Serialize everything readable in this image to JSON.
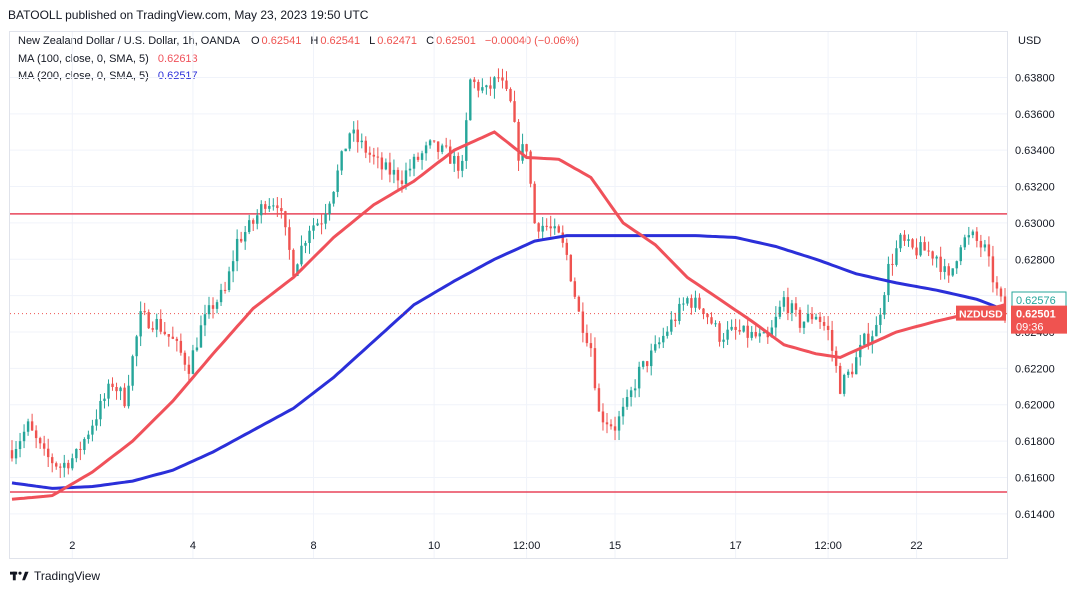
{
  "header": {
    "published": "BATOOLL published on TradingView.com, May 23, 2023 19:50 UTC"
  },
  "legend": {
    "symbol": "New Zealand Dollar / U.S. Dollar, 1h, OANDA",
    "o_label": "O",
    "o_value": "0.62541",
    "h_label": "H",
    "h_value": "0.62541",
    "l_label": "L",
    "l_value": "0.62471",
    "c_label": "C",
    "c_value": "0.62501",
    "change": "−0.00040 (−0.06%)",
    "ma100_label": "MA (100, close, 0, SMA, 5)",
    "ma100_value": "0.62613",
    "ma200_label": "MA (200, close, 0, SMA, 5)",
    "ma200_value": "0.62517"
  },
  "footer": {
    "brand": "TradingView"
  },
  "colors": {
    "up": "#26a69a",
    "down": "#ef5350",
    "ma100": "#f0515a",
    "ma200": "#2b2fd9",
    "hline": "#e8455a",
    "grid": "#f0f3fa",
    "axis_text": "#131722"
  },
  "chart_data": {
    "type": "candlestick",
    "title": "New Zealand Dollar / U.S. Dollar, 1h, OANDA",
    "currency_label": "USD",
    "ylim": [
      0.613,
      0.6405
    ],
    "y_ticks": [
      "0.61400",
      "0.61600",
      "0.61800",
      "0.62000",
      "0.62200",
      "0.62400",
      "0.62600",
      "0.62800",
      "0.63000",
      "0.63200",
      "0.63400",
      "0.63600",
      "0.63800"
    ],
    "x_ticks": [
      {
        "label": "2",
        "i": 15
      },
      {
        "label": "4",
        "i": 45
      },
      {
        "label": "8",
        "i": 75
      },
      {
        "label": "10",
        "i": 105
      },
      {
        "label": "12:00",
        "i": 128
      },
      {
        "label": "15",
        "i": 150
      },
      {
        "label": "17",
        "i": 180
      },
      {
        "label": "12:00",
        "i": 203
      },
      {
        "label": "22",
        "i": 225
      }
    ],
    "n_bars": 248,
    "horizontal_lines": [
      0.6305,
      0.6152
    ],
    "price_labels": [
      {
        "text": "0.62576",
        "value": 0.62576,
        "kind": "ma"
      },
      {
        "text": "0.62501",
        "value": 0.62501,
        "kind": "last"
      }
    ],
    "last_symbol": "NZDUSD",
    "countdown": "09:36",
    "price_anchors": [
      [
        0,
        0.6175
      ],
      [
        4,
        0.6188
      ],
      [
        8,
        0.6172
      ],
      [
        12,
        0.6166
      ],
      [
        16,
        0.6172
      ],
      [
        20,
        0.619
      ],
      [
        25,
        0.6212
      ],
      [
        28,
        0.6203
      ],
      [
        32,
        0.6248
      ],
      [
        36,
        0.6245
      ],
      [
        40,
        0.6235
      ],
      [
        44,
        0.6221
      ],
      [
        47,
        0.6242
      ],
      [
        50,
        0.6255
      ],
      [
        53,
        0.6262
      ],
      [
        56,
        0.629
      ],
      [
        60,
        0.63
      ],
      [
        63,
        0.6312
      ],
      [
        66,
        0.6312
      ],
      [
        70,
        0.6275
      ],
      [
        74,
        0.6298
      ],
      [
        77,
        0.6302
      ],
      [
        80,
        0.632
      ],
      [
        84,
        0.635
      ],
      [
        88,
        0.634
      ],
      [
        92,
        0.633
      ],
      [
        97,
        0.6325
      ],
      [
        100,
        0.6333
      ],
      [
        104,
        0.6342
      ],
      [
        108,
        0.6338
      ],
      [
        112,
        0.633
      ],
      [
        114,
        0.6378
      ],
      [
        118,
        0.6372
      ],
      [
        121,
        0.638
      ],
      [
        124,
        0.6365
      ],
      [
        126,
        0.6338
      ],
      [
        128,
        0.6342
      ],
      [
        130,
        0.63
      ],
      [
        133,
        0.6298
      ],
      [
        136,
        0.6292
      ],
      [
        138,
        0.6282
      ],
      [
        141,
        0.625
      ],
      [
        144,
        0.6232
      ],
      [
        146,
        0.6195
      ],
      [
        150,
        0.6188
      ],
      [
        153,
        0.62
      ],
      [
        156,
        0.6218
      ],
      [
        160,
        0.623
      ],
      [
        164,
        0.6245
      ],
      [
        168,
        0.6258
      ],
      [
        172,
        0.6253
      ],
      [
        176,
        0.6238
      ],
      [
        180,
        0.624
      ],
      [
        184,
        0.6238
      ],
      [
        188,
        0.6235
      ],
      [
        192,
        0.6258
      ],
      [
        196,
        0.6245
      ],
      [
        200,
        0.625
      ],
      [
        203,
        0.624
      ],
      [
        206,
        0.621
      ],
      [
        209,
        0.622
      ],
      [
        212,
        0.6235
      ],
      [
        215,
        0.6242
      ],
      [
        218,
        0.6275
      ],
      [
        221,
        0.629
      ],
      [
        224,
        0.6285
      ],
      [
        227,
        0.6285
      ],
      [
        230,
        0.6282
      ],
      [
        233,
        0.6268
      ],
      [
        236,
        0.629
      ],
      [
        239,
        0.6292
      ],
      [
        242,
        0.6285
      ],
      [
        245,
        0.6262
      ],
      [
        247,
        0.625
      ]
    ],
    "ma100_anchors": [
      [
        0,
        0.6148
      ],
      [
        10,
        0.615
      ],
      [
        20,
        0.6163
      ],
      [
        30,
        0.618
      ],
      [
        40,
        0.6202
      ],
      [
        50,
        0.6228
      ],
      [
        60,
        0.6253
      ],
      [
        70,
        0.627
      ],
      [
        80,
        0.6292
      ],
      [
        90,
        0.631
      ],
      [
        100,
        0.6323
      ],
      [
        110,
        0.634
      ],
      [
        120,
        0.635
      ],
      [
        128,
        0.6336
      ],
      [
        136,
        0.6335
      ],
      [
        144,
        0.6325
      ],
      [
        152,
        0.63
      ],
      [
        160,
        0.6288
      ],
      [
        168,
        0.627
      ],
      [
        176,
        0.6258
      ],
      [
        184,
        0.6246
      ],
      [
        192,
        0.6233
      ],
      [
        200,
        0.6228
      ],
      [
        206,
        0.6226
      ],
      [
        212,
        0.6232
      ],
      [
        220,
        0.624
      ],
      [
        230,
        0.6246
      ],
      [
        240,
        0.6251
      ],
      [
        247,
        0.6255
      ]
    ],
    "ma200_anchors": [
      [
        0,
        0.6157
      ],
      [
        10,
        0.6154
      ],
      [
        20,
        0.6155
      ],
      [
        30,
        0.6158
      ],
      [
        40,
        0.6164
      ],
      [
        50,
        0.6174
      ],
      [
        60,
        0.6186
      ],
      [
        70,
        0.6198
      ],
      [
        80,
        0.6215
      ],
      [
        90,
        0.6235
      ],
      [
        100,
        0.6255
      ],
      [
        110,
        0.6268
      ],
      [
        120,
        0.628
      ],
      [
        130,
        0.629
      ],
      [
        138,
        0.6293
      ],
      [
        150,
        0.6293
      ],
      [
        160,
        0.6293
      ],
      [
        170,
        0.6293
      ],
      [
        180,
        0.6292
      ],
      [
        190,
        0.6287
      ],
      [
        200,
        0.628
      ],
      [
        210,
        0.6272
      ],
      [
        220,
        0.6267
      ],
      [
        230,
        0.6263
      ],
      [
        240,
        0.6258
      ],
      [
        247,
        0.6252
      ]
    ]
  }
}
